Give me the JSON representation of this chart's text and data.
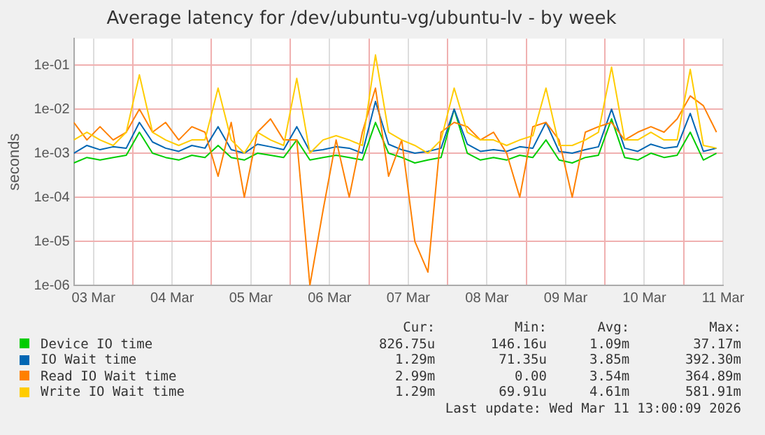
{
  "chart_data": {
    "type": "line",
    "title": "Average latency for /dev/ubuntu-vg/ubuntu-lv - by week",
    "ylabel": "seconds",
    "log": "y",
    "grid": true,
    "legend": "bottom",
    "marker": "none",
    "line_style": "solid",
    "xlim": [
      "2026-03-03T06:00",
      "2026-03-11T12:00"
    ],
    "xticks": [
      {
        "value": "2026-03-03T12:00",
        "label": "03 Mar"
      },
      {
        "value": "2026-03-04T00:00",
        "label": null
      },
      {
        "value": "2026-03-04T12:00",
        "label": "04 Mar"
      },
      {
        "value": "2026-03-05T00:00",
        "label": null
      },
      {
        "value": "2026-03-05T12:00",
        "label": "05 Mar"
      },
      {
        "value": "2026-03-06T00:00",
        "label": null
      },
      {
        "value": "2026-03-06T12:00",
        "label": "06 Mar"
      },
      {
        "value": "2026-03-07T00:00",
        "label": null
      },
      {
        "value": "2026-03-07T12:00",
        "label": "07 Mar"
      },
      {
        "value": "2026-03-08T00:00",
        "label": null
      },
      {
        "value": "2026-03-08T12:00",
        "label": "08 Mar"
      },
      {
        "value": "2026-03-09T00:00",
        "label": null
      },
      {
        "value": "2026-03-09T12:00",
        "label": "09 Mar"
      },
      {
        "value": "2026-03-10T00:00",
        "label": null
      },
      {
        "value": "2026-03-10T12:00",
        "label": "10 Mar"
      },
      {
        "value": "2026-03-11T00:00",
        "label": null
      },
      {
        "value": "2026-03-11T12:00",
        "label": "11 Mar"
      }
    ],
    "ylim": [
      1e-06,
      0.4
    ],
    "yticks": [
      {
        "value": 1e-06,
        "label": "1e-06"
      },
      {
        "value": 1e-05,
        "label": "1e-05"
      },
      {
        "value": 0.0001,
        "label": "1e-04"
      },
      {
        "value": 0.001,
        "label": "1e-03"
      },
      {
        "value": 0.01,
        "label": "1e-02"
      },
      {
        "value": 0.1,
        "label": "1e-01"
      }
    ],
    "x": [
      "2026-03-03T06:00",
      "2026-03-03T10:00",
      "2026-03-03T14:00",
      "2026-03-03T18:00",
      "2026-03-03T22:00",
      "2026-03-04T02:00",
      "2026-03-04T06:00",
      "2026-03-04T10:00",
      "2026-03-04T14:00",
      "2026-03-04T18:00",
      "2026-03-04T22:00",
      "2026-03-05T02:00",
      "2026-03-05T06:00",
      "2026-03-05T10:00",
      "2026-03-05T14:00",
      "2026-03-05T18:00",
      "2026-03-05T22:00",
      "2026-03-06T02:00",
      "2026-03-06T06:00",
      "2026-03-06T10:00",
      "2026-03-06T14:00",
      "2026-03-06T18:00",
      "2026-03-06T22:00",
      "2026-03-07T02:00",
      "2026-03-07T06:00",
      "2026-03-07T10:00",
      "2026-03-07T14:00",
      "2026-03-07T18:00",
      "2026-03-07T22:00",
      "2026-03-08T02:00",
      "2026-03-08T06:00",
      "2026-03-08T10:00",
      "2026-03-08T14:00",
      "2026-03-08T18:00",
      "2026-03-08T22:00",
      "2026-03-09T02:00",
      "2026-03-09T06:00",
      "2026-03-09T10:00",
      "2026-03-09T14:00",
      "2026-03-09T18:00",
      "2026-03-09T22:00",
      "2026-03-10T02:00",
      "2026-03-10T06:00",
      "2026-03-10T10:00",
      "2026-03-10T14:00",
      "2026-03-10T18:00",
      "2026-03-10T22:00",
      "2026-03-11T02:00",
      "2026-03-11T06:00",
      "2026-03-11T10:00"
    ],
    "series": [
      {
        "name": "Device IO time",
        "color": "#00cc00",
        "values": [
          0.0006,
          0.0008,
          0.0007,
          0.0008,
          0.0009,
          0.003,
          0.001,
          0.0008,
          0.0007,
          0.0009,
          0.0008,
          0.0015,
          0.0008,
          0.0007,
          0.001,
          0.0009,
          0.0008,
          0.002,
          0.0007,
          0.0008,
          0.0009,
          0.0008,
          0.0007,
          0.005,
          0.001,
          0.0008,
          0.0006,
          0.0007,
          0.0008,
          0.01,
          0.001,
          0.0007,
          0.0008,
          0.0007,
          0.0009,
          0.0008,
          0.002,
          0.0007,
          0.0006,
          0.0008,
          0.0009,
          0.006,
          0.0008,
          0.0007,
          0.001,
          0.0008,
          0.0009,
          0.003,
          0.0007,
          0.001
        ]
      },
      {
        "name": "IO Wait time",
        "color": "#0066b3",
        "values": [
          0.001,
          0.0015,
          0.0012,
          0.0014,
          0.0013,
          0.005,
          0.0018,
          0.0013,
          0.0011,
          0.0015,
          0.0013,
          0.004,
          0.0012,
          0.001,
          0.0016,
          0.0014,
          0.0012,
          0.004,
          0.0011,
          0.0012,
          0.0014,
          0.0013,
          0.001,
          0.015,
          0.0016,
          0.0012,
          0.001,
          0.0011,
          0.0013,
          0.01,
          0.0016,
          0.0011,
          0.0012,
          0.0011,
          0.0014,
          0.0013,
          0.005,
          0.0011,
          0.001,
          0.0012,
          0.0014,
          0.01,
          0.0013,
          0.0011,
          0.0016,
          0.0013,
          0.0014,
          0.008,
          0.0011,
          0.0013
        ]
      },
      {
        "name": "Read IO Wait time",
        "color": "#ff8000",
        "values": [
          0.005,
          0.002,
          0.004,
          0.002,
          0.003,
          0.01,
          0.003,
          0.005,
          0.002,
          0.004,
          0.003,
          0.0003,
          0.005,
          0.0001,
          0.003,
          0.006,
          0.002,
          0.002,
          1e-06,
          5e-05,
          0.002,
          0.0001,
          0.003,
          0.03,
          0.0003,
          0.002,
          1e-05,
          2e-06,
          0.003,
          0.005,
          0.004,
          0.002,
          0.003,
          0.001,
          0.0001,
          0.004,
          0.005,
          0.002,
          0.0001,
          0.003,
          0.004,
          0.005,
          0.002,
          0.003,
          0.004,
          0.003,
          0.006,
          0.02,
          0.012,
          0.003
        ]
      },
      {
        "name": "Write IO Wait time",
        "color": "#ffcc00",
        "values": [
          0.002,
          0.003,
          0.002,
          0.0015,
          0.003,
          0.06,
          0.003,
          0.002,
          0.0015,
          0.002,
          0.002,
          0.03,
          0.002,
          0.001,
          0.003,
          0.002,
          0.0015,
          0.05,
          0.001,
          0.002,
          0.0025,
          0.002,
          0.0015,
          0.17,
          0.003,
          0.002,
          0.0015,
          0.001,
          0.002,
          0.03,
          0.003,
          0.002,
          0.002,
          0.0015,
          0.002,
          0.0025,
          0.03,
          0.0015,
          0.0015,
          0.002,
          0.003,
          0.09,
          0.002,
          0.002,
          0.003,
          0.002,
          0.002,
          0.08,
          0.0015,
          0.0013
        ]
      }
    ],
    "annotations": [
      "Cur:",
      "Min:",
      "Avg:",
      "Max:",
      "826.75u",
      "146.16u",
      "1.09m",
      "37.17m",
      "1.29m",
      "71.35u",
      "3.85m",
      "392.30m",
      "2.99m",
      "0.00",
      "3.54m",
      "364.89m",
      "1.29m",
      "69.91u",
      "4.61m",
      "581.91m",
      "Last update: Wed Mar 11 13:00:09 2026"
    ]
  }
}
